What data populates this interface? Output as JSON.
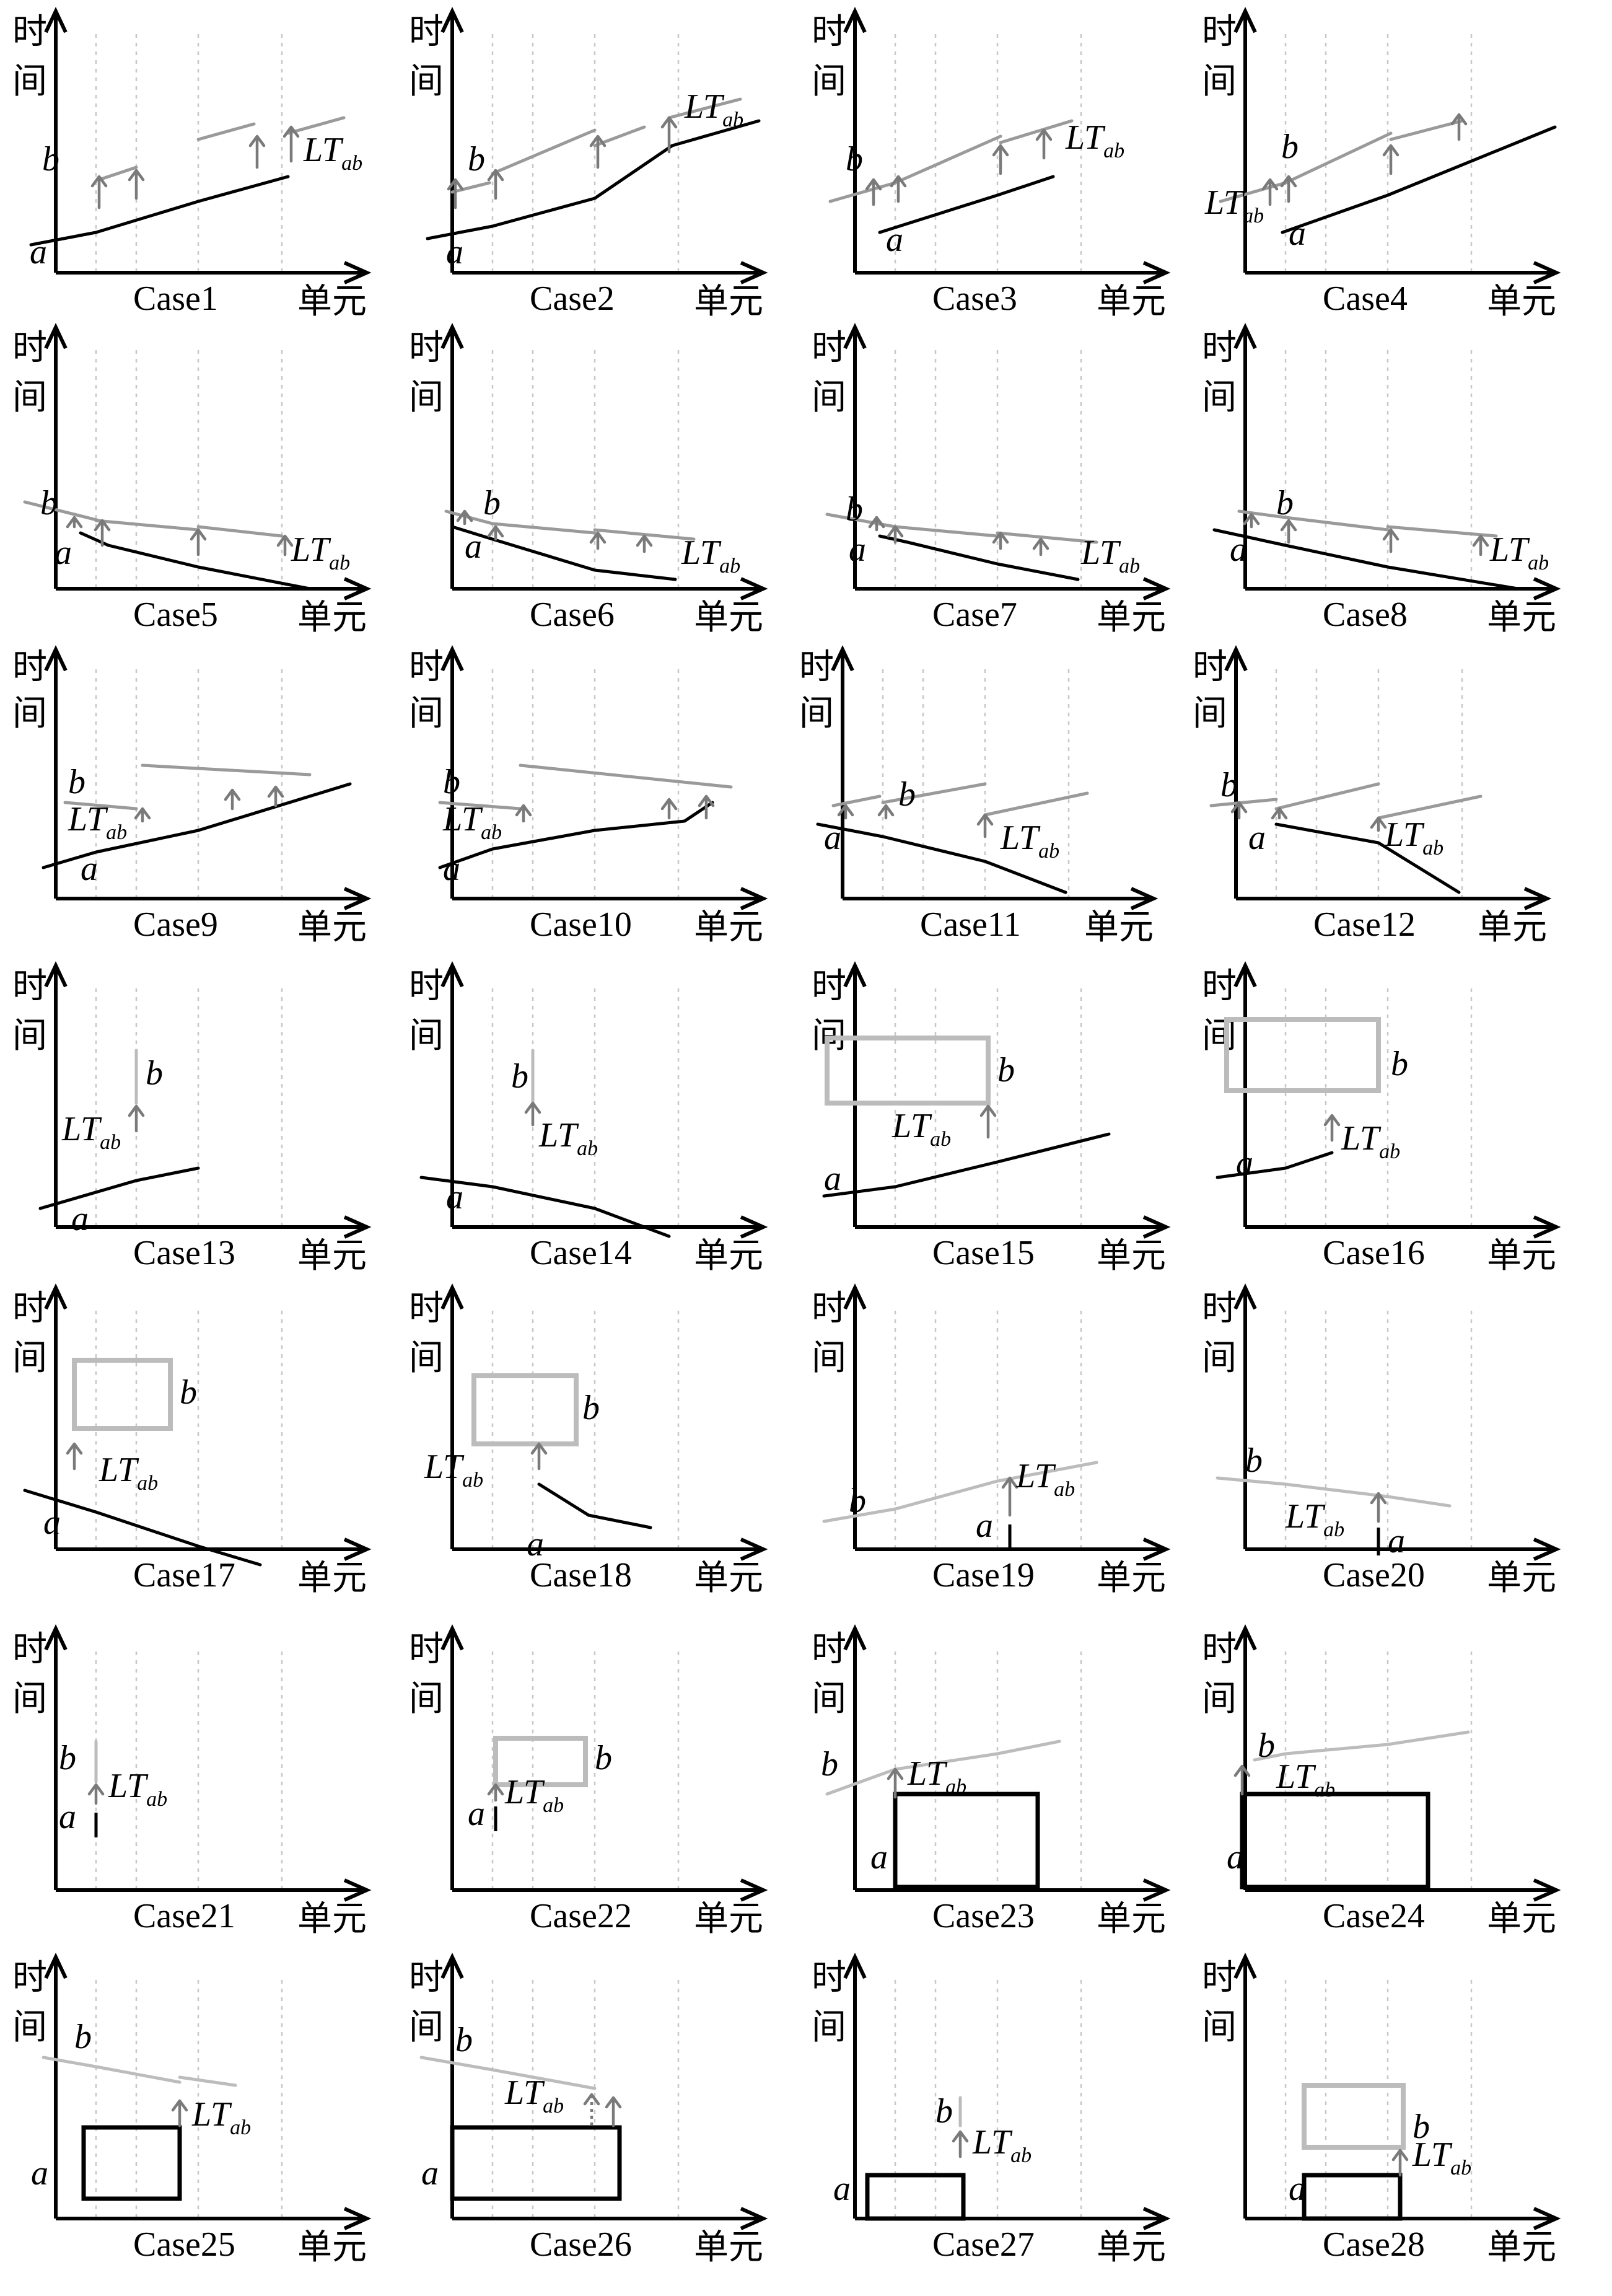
{
  "axis_labels": {
    "y_line1": "时",
    "y_line2": "间",
    "x": "单元"
  },
  "labels": {
    "a": "a",
    "b": "b",
    "lt_main": "LT",
    "lt_sub": "ab"
  },
  "cases": [
    "Case1",
    "Case2",
    "Case3",
    "Case4",
    "Case5",
    "Case6",
    "Case7",
    "Case8",
    "Case9",
    "Case10",
    "Case11",
    "Case12",
    "Case13",
    "Case14",
    "Case15",
    "Case16",
    "Case17",
    "Case18",
    "Case19",
    "Case20",
    "Case21",
    "Case22",
    "Case23",
    "Case24",
    "Case25",
    "Case26",
    "Case27",
    "Case28"
  ]
}
